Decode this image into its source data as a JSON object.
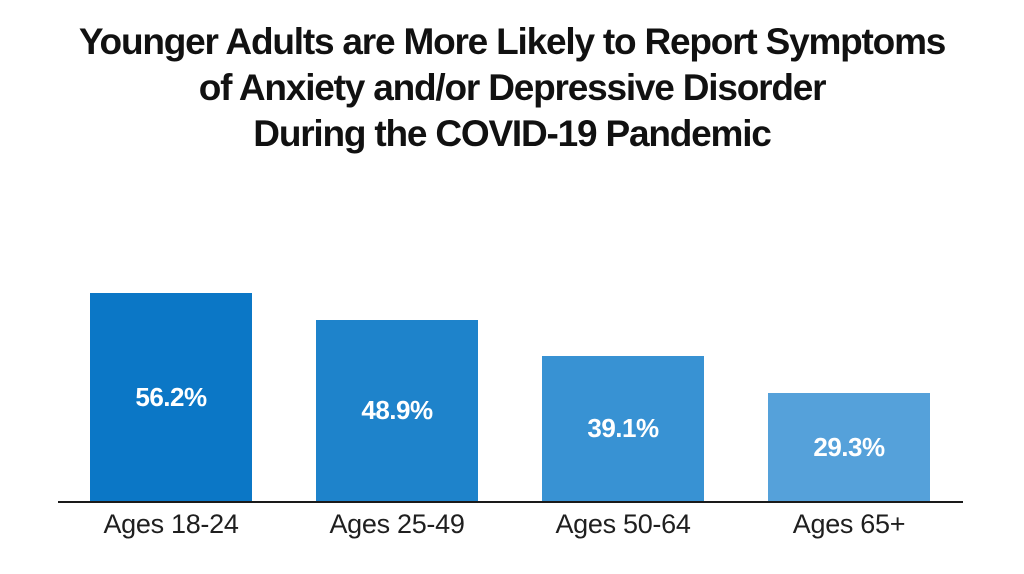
{
  "title": {
    "line1": "Younger Adults are More Likely to Report Symptoms",
    "line2": "of Anxiety and/or Depressive Disorder",
    "line3": "During the COVID-19 Pandemic"
  },
  "chart_data": {
    "type": "bar",
    "title": "Younger Adults are More Likely to Report Symptoms of Anxiety and/or Depressive Disorder During the COVID-19 Pandemic",
    "categories": [
      "Ages 18-24",
      "Ages 25-49",
      "Ages 50-64",
      "Ages 65+"
    ],
    "values": [
      56.2,
      48.9,
      39.1,
      29.3
    ],
    "value_labels": [
      "56.2%",
      "48.9%",
      "39.1%",
      "29.3%"
    ],
    "bar_colors": [
      "#0b77c6",
      "#1e83cb",
      "#3892d3",
      "#55a1da"
    ],
    "xlabel": "",
    "ylabel": "",
    "ylim": [
      0,
      60
    ],
    "grid": false,
    "legend_position": "none",
    "value_label_color": "#ffffff",
    "axis_color": "#1a1a1a",
    "background_color": "#ffffff",
    "title_color": "#111111",
    "category_label_color": "#1f1f1f"
  }
}
